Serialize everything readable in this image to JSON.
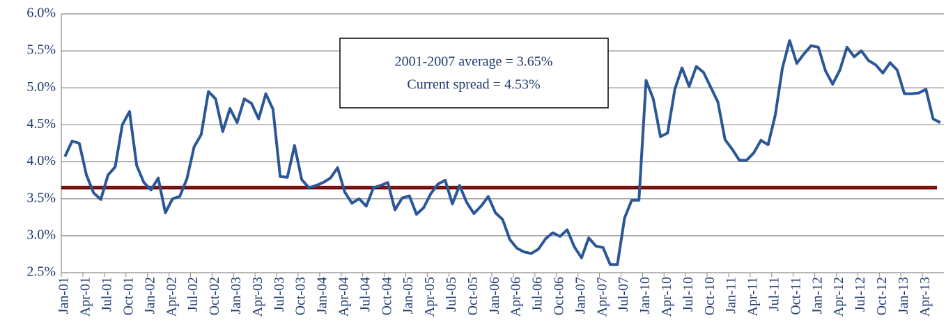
{
  "chart_data": {
    "type": "line",
    "annotation": [
      "2001-2007 average = 3.65%",
      "Current spread = 4.53%"
    ],
    "categories": [
      "Jan-01",
      null,
      null,
      "Apr-01",
      null,
      null,
      "Jul-01",
      null,
      null,
      "Oct-01",
      null,
      null,
      "Jan-02",
      null,
      null,
      "Apr-02",
      null,
      null,
      "Jul-02",
      null,
      null,
      "Oct-02",
      null,
      null,
      "Jan-03",
      null,
      null,
      "Apr-03",
      null,
      null,
      "Jul-03",
      null,
      null,
      "Oct-03",
      null,
      null,
      "Jan-04",
      null,
      null,
      "Apr-04",
      null,
      null,
      "Jul-04",
      null,
      null,
      "Oct-04",
      null,
      null,
      "Jan-05",
      null,
      null,
      "Apr-05",
      null,
      null,
      "Jul-05",
      null,
      null,
      "Oct-05",
      null,
      null,
      "Jan-06",
      null,
      null,
      "Apr-06",
      null,
      null,
      "Jul-06",
      null,
      null,
      "Oct-06",
      null,
      null,
      "Jan-07",
      null,
      null,
      "Apr-07",
      null,
      null,
      "Jul-07",
      null,
      null,
      "Jan-10",
      null,
      null,
      "Apr-10",
      null,
      null,
      "Jul-10",
      null,
      null,
      "Oct-10",
      null,
      null,
      "Jan-11",
      null,
      null,
      "Apr-11",
      null,
      null,
      "Jul-11",
      null,
      null,
      "Oct-11",
      null,
      null,
      "Jan-12",
      null,
      null,
      "Apr-12",
      null,
      null,
      "Jul-12",
      null,
      null,
      "Oct-12",
      null,
      null,
      "Jan-13",
      null,
      null,
      "Apr-13",
      null,
      null
    ],
    "series": [
      {
        "color": "#2b5797",
        "values": [
          4.07,
          4.28,
          4.25,
          3.82,
          3.58,
          3.49,
          3.82,
          3.93,
          4.5,
          4.68,
          3.95,
          3.72,
          3.62,
          3.78,
          3.31,
          3.5,
          3.53,
          3.77,
          4.2,
          4.37,
          4.95,
          4.85,
          4.41,
          4.72,
          4.53,
          4.85,
          4.79,
          4.58,
          4.92,
          4.71,
          3.8,
          3.79,
          4.22,
          3.76,
          3.65,
          3.68,
          3.72,
          3.78,
          3.92,
          3.59,
          3.44,
          3.5,
          3.4,
          3.65,
          3.68,
          3.72,
          3.35,
          3.51,
          3.54,
          3.29,
          3.38,
          3.57,
          3.7,
          3.75,
          3.43,
          3.68,
          3.45,
          3.3,
          3.4,
          3.53,
          3.31,
          3.22,
          2.95,
          2.83,
          2.78,
          2.76,
          2.82,
          2.96,
          3.04,
          2.99,
          3.08,
          2.85,
          2.7,
          2.97,
          2.86,
          2.84,
          2.61,
          2.61,
          3.24,
          3.48,
          3.48,
          5.1,
          4.85,
          4.34,
          4.39,
          4.98,
          5.27,
          5.02,
          5.29,
          5.21,
          5.01,
          4.81,
          4.3,
          4.17,
          4.02,
          4.02,
          4.12,
          4.29,
          4.23,
          4.63,
          5.27,
          5.64,
          5.33,
          5.46,
          5.57,
          5.55,
          5.23,
          5.05,
          5.24,
          5.55,
          5.42,
          5.5,
          5.37,
          5.31,
          5.2,
          5.34,
          5.24,
          4.92,
          4.92,
          4.93,
          4.98,
          4.58,
          4.53
        ]
      }
    ],
    "average_line": {
      "value": 3.65,
      "color": "#c00000"
    },
    "ylim": [
      2.5,
      6.0
    ],
    "yticks": [
      {
        "value": 2.5,
        "label": "2.5%"
      },
      {
        "value": 3.0,
        "label": "3.0%"
      },
      {
        "value": 3.5,
        "label": "3.5%"
      },
      {
        "value": 4.0,
        "label": "4.0%"
      },
      {
        "value": 4.5,
        "label": "4.5%"
      },
      {
        "value": 5.0,
        "label": "5.0%"
      },
      {
        "value": 5.5,
        "label": "5.5%"
      },
      {
        "value": 6.0,
        "label": "6.0%"
      }
    ],
    "grid": true
  }
}
